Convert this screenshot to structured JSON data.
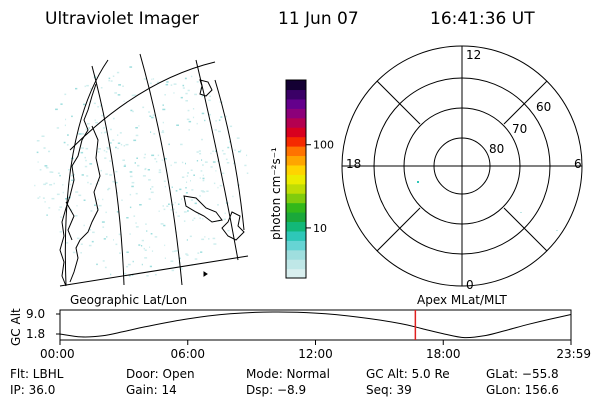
{
  "header": {
    "instrument": "Ultraviolet Imager",
    "date": "11 Jun 07",
    "time": "16:41:36 UT"
  },
  "colorbar": {
    "label": "photon cm⁻²s⁻¹",
    "ticks": [
      {
        "label": "100",
        "value": 100
      },
      {
        "label": "10",
        "value": 10
      }
    ],
    "colors": [
      "#d9efef",
      "#bfe7e7",
      "#9fdede",
      "#66d4d4",
      "#2ec7b8",
      "#12b878",
      "#1aa83a",
      "#33b81a",
      "#80cc0d",
      "#bfdd05",
      "#ecec00",
      "#ffd400",
      "#ffa500",
      "#ff7300",
      "#f52a00",
      "#d8001f",
      "#b40050",
      "#8c007a",
      "#64008c",
      "#3a0066",
      "#140033"
    ]
  },
  "map_labels": {
    "geographic": "Geographic Lat/Lon",
    "apex": "Apex MLat/MLT"
  },
  "polar": {
    "mlt_labels": {
      "top": "12",
      "left": "18",
      "right": "6",
      "bottom": "0"
    },
    "lat_labels": [
      "60",
      "70",
      "80"
    ]
  },
  "chart_data": {
    "type": "line",
    "title": "",
    "ylabel": "GC Alt",
    "yticks": [
      "9.0",
      "1.8"
    ],
    "ylim": [
      1.8,
      9.0
    ],
    "xticks": [
      "00:00",
      "06:00",
      "12:00",
      "18:00",
      "23:59"
    ],
    "xlim_hours": [
      0,
      24
    ],
    "series": [
      {
        "x": [
          0,
          1.0,
          2.0,
          3.0,
          4.0,
          6.0,
          8.0,
          10.0,
          12.0,
          14.0,
          16.0,
          17.0,
          18.0,
          19.0,
          20.0,
          21.0,
          22.0,
          23.0,
          24.0
        ],
        "y": [
          2.9,
          2.1,
          2.4,
          3.6,
          4.9,
          7.1,
          8.5,
          9.0,
          8.7,
          7.6,
          5.8,
          4.4,
          3.0,
          1.9,
          2.5,
          4.0,
          5.6,
          7.0,
          8.3
        ]
      }
    ],
    "current_time_hours": 16.69,
    "current_time_color": "#e02020"
  },
  "footer": {
    "rows": [
      [
        "Flt: LBHL",
        "Door: Open",
        "Mode: Normal",
        "GC Alt: 5.0 Re",
        "GLat: −55.8"
      ],
      [
        "IP: 36.0",
        "Gain: 14",
        "Dsp:    −8.9",
        "Seq: 39",
        "GLon: 156.6"
      ]
    ]
  }
}
